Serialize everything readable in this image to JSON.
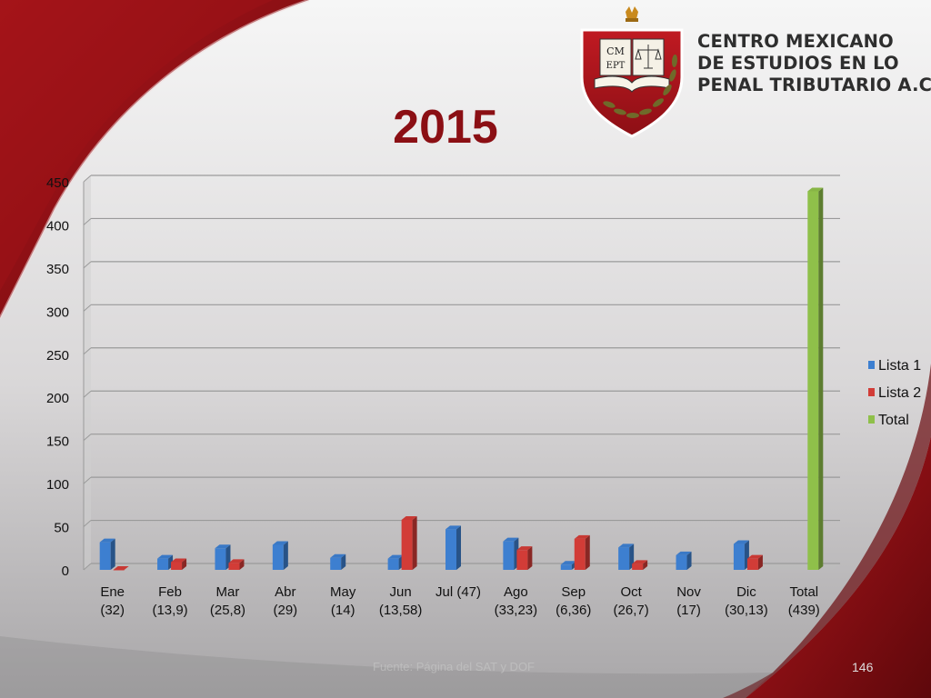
{
  "slide": {
    "title": "2015",
    "footer_source": "Fuente: Página del SAT y DOF",
    "page_number": "146"
  },
  "logo": {
    "monogram_top": "CM",
    "monogram_bottom": "EPT",
    "name_lines": [
      "CENTRO MEXICANO",
      "DE ESTUDIOS EN LO",
      "PENAL TRIBUTARIO A.C."
    ]
  },
  "colors": {
    "brand_red": "#8b0f14",
    "lista1": "#3d7fd0",
    "lista2": "#d23c37",
    "total": "#8fc04a"
  },
  "chart_data": {
    "type": "bar",
    "categories": [
      [
        "Ene",
        "(32)"
      ],
      [
        "Feb",
        "(13,9)"
      ],
      [
        "Mar",
        "(25,8)"
      ],
      [
        "Abr",
        "(29)"
      ],
      [
        "May",
        "(14)"
      ],
      [
        "Jun",
        "(13,58)"
      ],
      [
        "Jul (47)",
        ""
      ],
      [
        "Ago",
        "(33,23)"
      ],
      [
        "Sep",
        "(6,36)"
      ],
      [
        "Oct",
        "(26,7)"
      ],
      [
        "Nov",
        "(17)"
      ],
      [
        "Dic",
        "(30,13)"
      ],
      [
        "Total",
        "(439)"
      ]
    ],
    "series": [
      {
        "name": "Lista 1",
        "values": [
          32,
          13,
          25,
          29,
          14,
          13,
          47,
          33,
          6,
          26,
          17,
          30,
          null
        ]
      },
      {
        "name": "Lista 2",
        "values": [
          0,
          9,
          8,
          null,
          null,
          58,
          null,
          23,
          36,
          7,
          null,
          13,
          null
        ]
      },
      {
        "name": "Total",
        "values": [
          null,
          null,
          null,
          null,
          null,
          null,
          null,
          null,
          null,
          null,
          null,
          null,
          439
        ]
      }
    ],
    "yticks": [
      "0",
      "50",
      "100",
      "150",
      "200",
      "250",
      "300",
      "350",
      "400",
      "450"
    ],
    "ylim": [
      0,
      450
    ],
    "legend": "right",
    "grid": true
  }
}
